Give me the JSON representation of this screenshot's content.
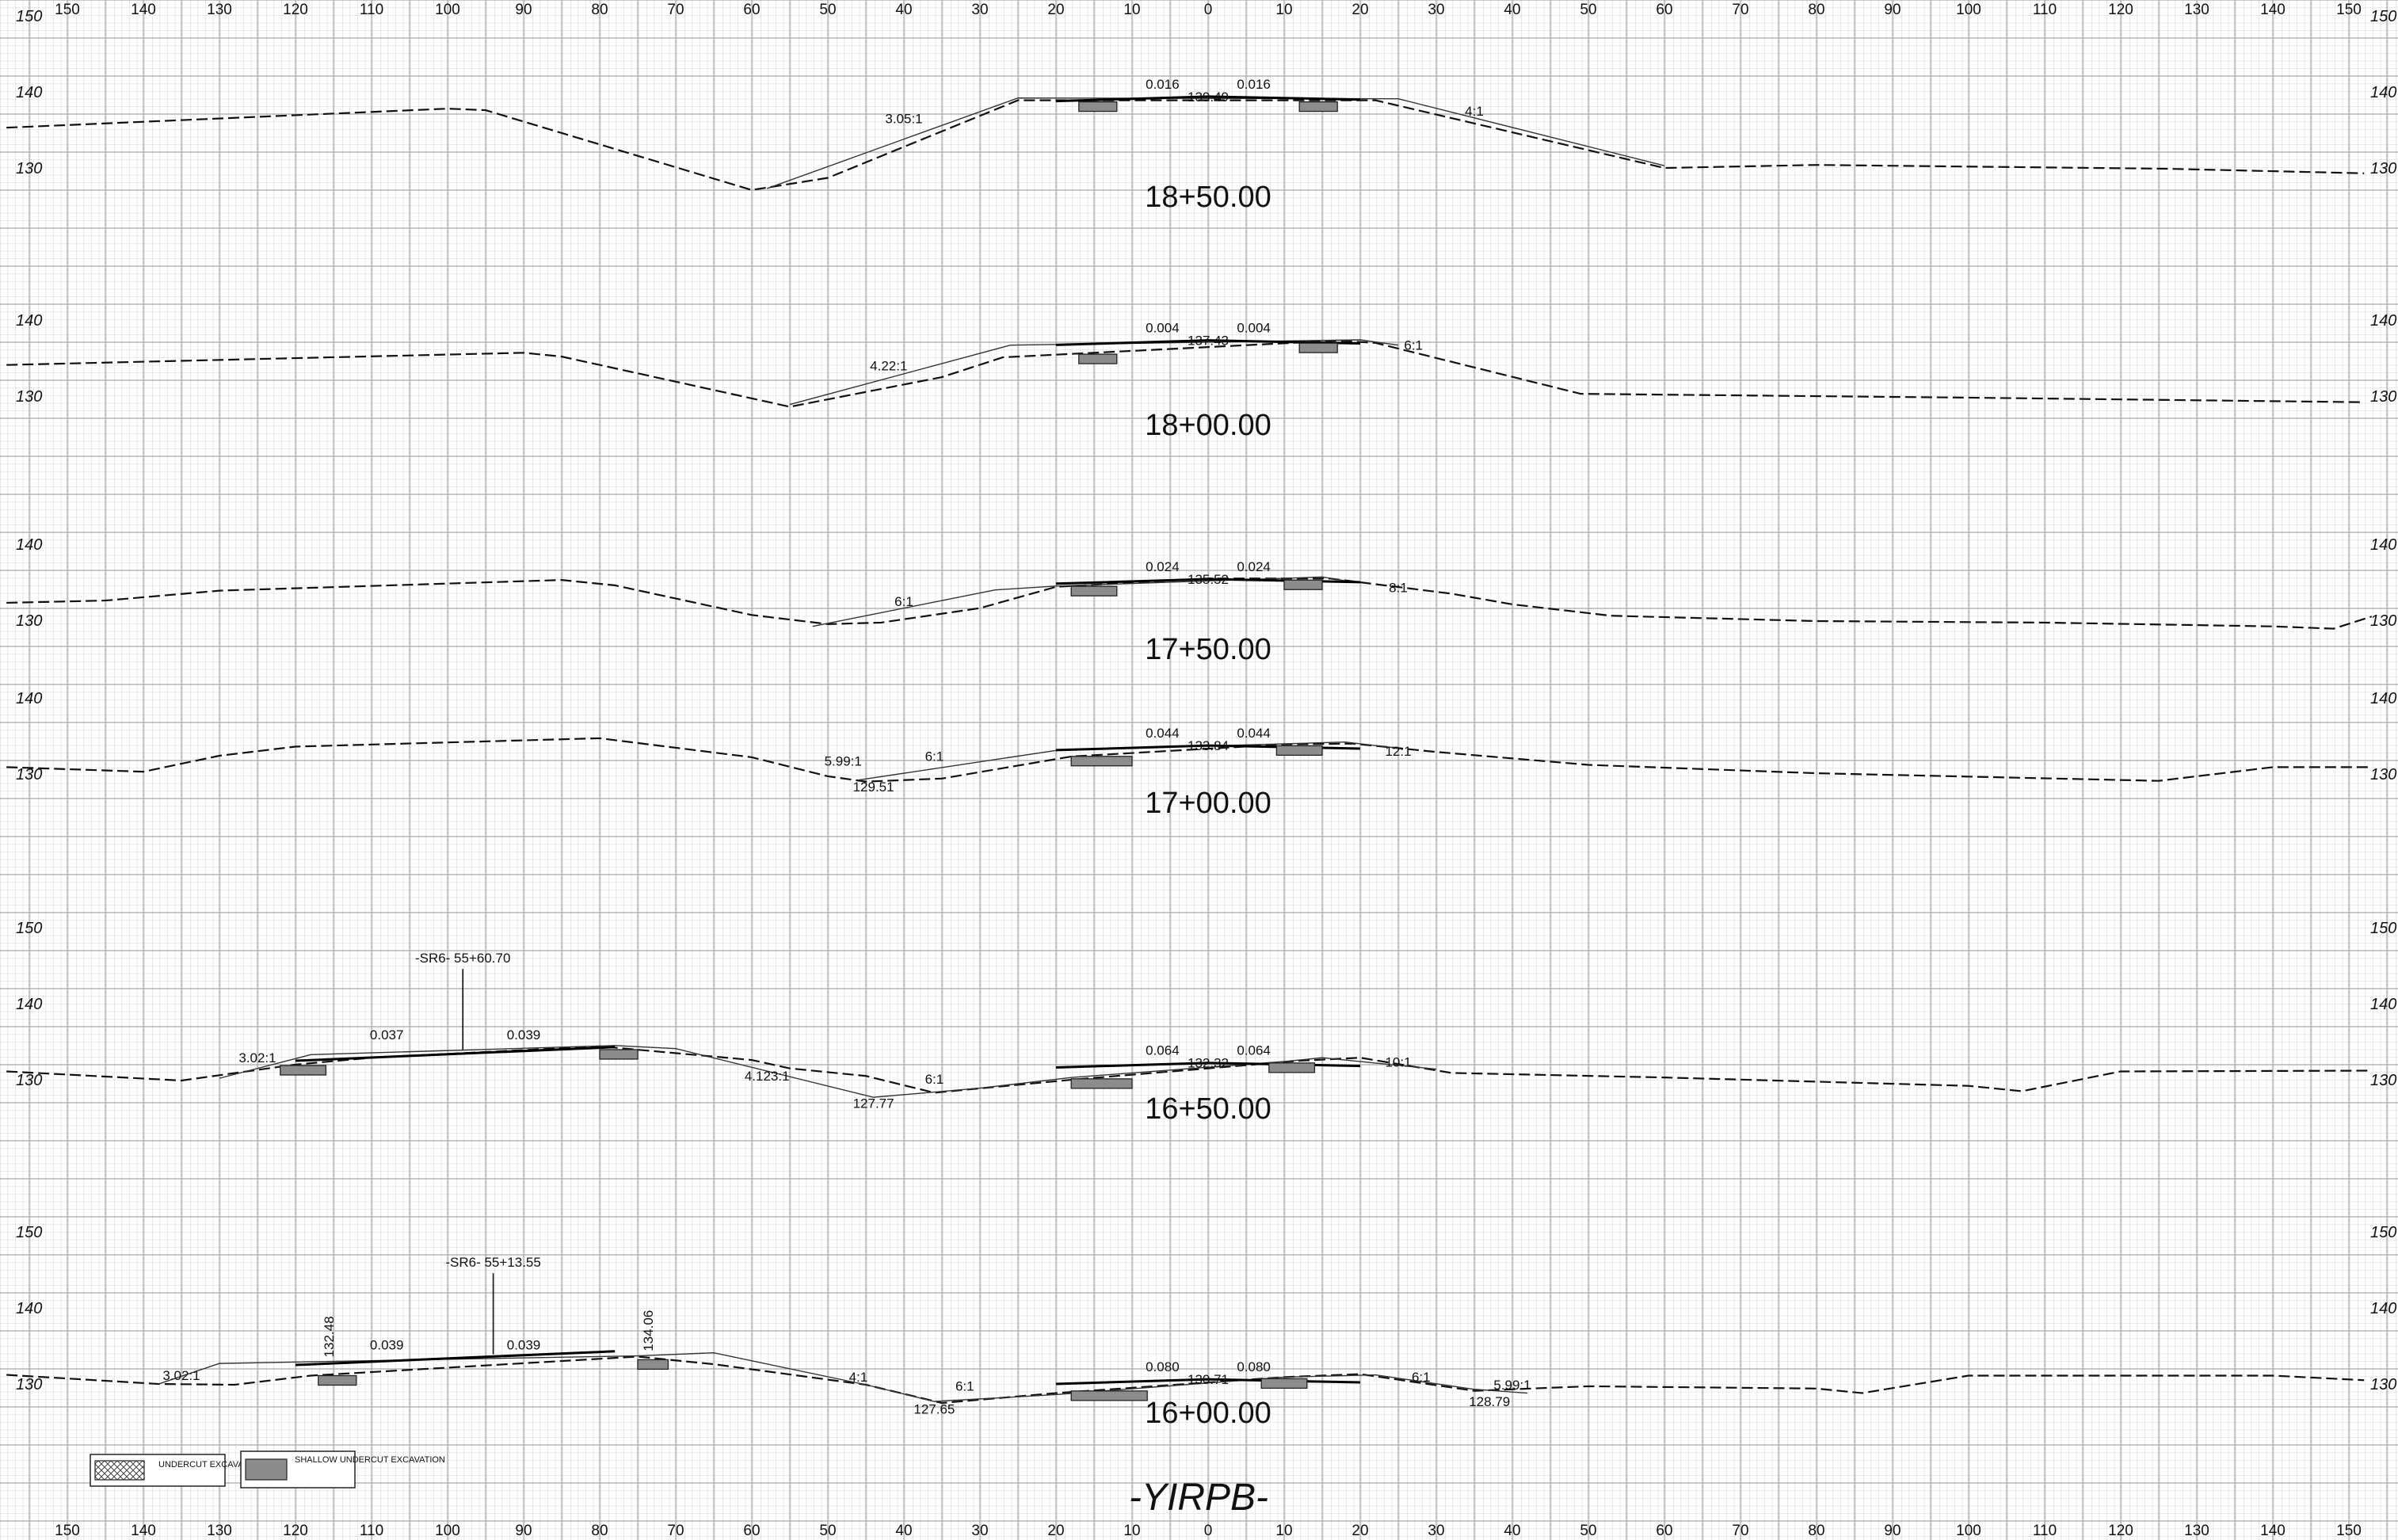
{
  "sheet_title": "-YIRPB-",
  "x_ticks": [
    "150",
    "140",
    "130",
    "120",
    "110",
    "100",
    "90",
    "80",
    "70",
    "60",
    "50",
    "40",
    "30",
    "20",
    "10",
    "0",
    "10",
    "20",
    "30",
    "40",
    "50",
    "60",
    "70",
    "80",
    "90",
    "100",
    "110",
    "120",
    "130",
    "140",
    "150"
  ],
  "x_tick_values": [
    -150,
    -140,
    -130,
    -120,
    -110,
    -100,
    -90,
    -80,
    -70,
    -60,
    -50,
    -40,
    -30,
    -20,
    -10,
    0,
    10,
    20,
    30,
    40,
    50,
    60,
    70,
    80,
    90,
    100,
    110,
    120,
    130,
    140,
    150
  ],
  "legend": {
    "undercut": "UNDERCUT EXCAVATION",
    "shallow": "SHALLOW UNDERCUT EXCAVATION"
  },
  "sections": [
    {
      "station": "18+50.00",
      "elev_labels": [
        "150",
        "140",
        "130"
      ],
      "elev_values": [
        150,
        140,
        130
      ],
      "centerline_elev": "139.49",
      "cross_slopes": [
        "0.016",
        "0.016"
      ],
      "slope_labels": [
        "3.05:1",
        "4:1"
      ],
      "ground": [
        [
          -158,
          135.4
        ],
        [
          -100,
          137.9
        ],
        [
          -95,
          137.7
        ],
        [
          -60,
          127.2
        ],
        [
          -50,
          128.8
        ],
        [
          -25,
          139.0
        ],
        [
          22,
          139.0
        ],
        [
          60,
          130.1
        ],
        [
          80,
          130.5
        ],
        [
          126,
          130.0
        ],
        [
          152,
          129.4
        ]
      ],
      "design": [
        [
          -58,
          127.4
        ],
        [
          -25,
          139.3
        ],
        [
          25,
          139.2
        ],
        [
          60,
          130.4
        ]
      ],
      "pads": [
        [
          -17,
          -12
        ],
        [
          12,
          17
        ]
      ]
    },
    {
      "station": "18+00.00",
      "elev_labels": [
        "140",
        "130"
      ],
      "elev_values": [
        140,
        130
      ],
      "centerline_elev": "137.43",
      "cross_slopes": [
        "0.004",
        "0.004"
      ],
      "slope_labels": [
        "4.22:1",
        "6:1"
      ],
      "ground": [
        [
          -158,
          134.2
        ],
        [
          -90,
          135.8
        ],
        [
          -85,
          135.3
        ],
        [
          -55,
          128.7
        ],
        [
          -35,
          132.6
        ],
        [
          -27,
          135.2
        ],
        [
          17,
          137.4
        ],
        [
          22,
          137.1
        ],
        [
          49,
          130.4
        ],
        [
          100,
          129.9
        ],
        [
          152,
          129.3
        ]
      ],
      "design": [
        [
          -55,
          129.0
        ],
        [
          -26,
          136.8
        ],
        [
          20,
          137.5
        ],
        [
          25,
          136.8
        ]
      ],
      "pads": [
        [
          -17,
          -12
        ],
        [
          12,
          17
        ]
      ]
    },
    {
      "station": "17+50.00",
      "elev_labels": [
        "140",
        "130"
      ],
      "elev_values": [
        140,
        130
      ],
      "centerline_elev": "135.52",
      "cross_slopes": [
        "0.024",
        "0.024"
      ],
      "slope_labels": [
        "6:1",
        "8:1"
      ],
      "ground": [
        [
          -158,
          132.4
        ],
        [
          -145,
          132.7
        ],
        [
          -130,
          134.0
        ],
        [
          -85,
          135.4
        ],
        [
          -78,
          134.7
        ],
        [
          -60,
          130.8
        ],
        [
          -50,
          129.6
        ],
        [
          -43,
          129.8
        ],
        [
          -30,
          131.7
        ],
        [
          -20,
          134.5
        ],
        [
          0,
          135.6
        ],
        [
          16,
          135.6
        ],
        [
          32,
          133.6
        ],
        [
          40,
          132.2
        ],
        [
          53,
          130.7
        ],
        [
          80,
          130.0
        ],
        [
          110,
          129.8
        ],
        [
          140,
          129.3
        ],
        [
          148,
          129.0
        ],
        [
          153,
          130.6
        ]
      ],
      "design": [
        [
          -52,
          129.3
        ],
        [
          -28,
          134.1
        ],
        [
          -20,
          134.6
        ],
        [
          15,
          135.8
        ],
        [
          18,
          135.3
        ]
      ],
      "pads": [
        [
          -18,
          -12
        ],
        [
          10,
          15
        ]
      ]
    },
    {
      "station": "17+00.00",
      "elev_labels": [
        "140",
        "130"
      ],
      "elev_values": [
        140,
        130
      ],
      "centerline_elev": "133.84",
      "cross_slopes": [
        "0.044",
        "0.044"
      ],
      "slope_labels": [
        "5.99:1",
        "6:1",
        "12:1"
      ],
      "low_point": "129.51",
      "ground": [
        [
          -158,
          131.0
        ],
        [
          -140,
          130.4
        ],
        [
          -130,
          132.5
        ],
        [
          -120,
          133.7
        ],
        [
          -80,
          134.8
        ],
        [
          -60,
          132.3
        ],
        [
          -50,
          129.8
        ],
        [
          -45,
          129.1
        ],
        [
          -35,
          129.5
        ],
        [
          -18,
          132.4
        ],
        [
          10,
          134.0
        ],
        [
          19,
          134.1
        ],
        [
          30,
          133.0
        ],
        [
          50,
          131.3
        ],
        [
          80,
          130.2
        ],
        [
          125,
          129.2
        ],
        [
          140,
          131.0
        ],
        [
          153,
          131.0
        ]
      ],
      "design": [
        [
          -46,
          129.3
        ],
        [
          -20,
          133.2
        ],
        [
          18,
          134.3
        ],
        [
          25,
          133.5
        ]
      ],
      "pads": [
        [
          -18,
          -10
        ],
        [
          9,
          15
        ]
      ]
    },
    {
      "station": "16+50.00",
      "elev_labels": [
        "150",
        "140",
        "130"
      ],
      "elev_values": [
        150,
        140,
        130
      ],
      "centerline_elev": "132.32",
      "cross_slopes": [
        "0.064",
        "0.064"
      ],
      "slope_labels": [
        "3.02:1",
        "4.123:1",
        "6:1",
        "10:1"
      ],
      "low_point": "127.77",
      "alignment": "-SR6- 55+60.70",
      "alignment_offset": -98,
      "approach_slopes": [
        "0.037",
        "0.039"
      ],
      "ground": [
        [
          -158,
          131.2
        ],
        [
          -135,
          130.0
        ],
        [
          -120,
          132.1
        ],
        [
          -110,
          133.0
        ],
        [
          -80,
          134.5
        ],
        [
          -60,
          132.7
        ],
        [
          -55,
          131.6
        ],
        [
          -45,
          130.6
        ],
        [
          -36,
          128.4
        ],
        [
          -18,
          130.1
        ],
        [
          12,
          132.6
        ],
        [
          20,
          133.0
        ],
        [
          32,
          131.0
        ],
        [
          60,
          130.4
        ],
        [
          100,
          129.3
        ],
        [
          107,
          128.6
        ],
        [
          120,
          131.2
        ],
        [
          153,
          131.3
        ]
      ],
      "design": [
        [
          -130,
          130.3
        ],
        [
          -118,
          133.4
        ],
        [
          -78,
          134.6
        ],
        [
          -70,
          134.2
        ],
        [
          -44,
          127.8
        ],
        [
          -30,
          129.0
        ],
        [
          -18,
          130.4
        ],
        [
          10,
          132.5
        ],
        [
          15,
          133.0
        ],
        [
          22,
          132.3
        ],
        [
          30,
          131.5
        ]
      ],
      "pads": [
        [
          -122,
          -116
        ],
        [
          -80,
          -75
        ],
        [
          -18,
          -10
        ],
        [
          8,
          14
        ]
      ],
      "alignment_label_y": 145.5
    },
    {
      "station": "16+00.00",
      "elev_labels": [
        "150",
        "140",
        "130"
      ],
      "elev_values": [
        150,
        140,
        130
      ],
      "centerline_elev": "130.71",
      "cross_slopes": [
        "0.080",
        "0.080"
      ],
      "slope_labels": [
        "3.02:1",
        "4:1",
        "6:1",
        "6:1",
        "5.99:1"
      ],
      "low_points": [
        "127.65",
        "128.79"
      ],
      "alignment": "-SR6- 55+13.55",
      "alignment_offset": -94,
      "approach_slopes": [
        "0.039",
        "0.039"
      ],
      "edge_elevs": [
        "132.48",
        "134.06"
      ],
      "ground": [
        [
          -158,
          131.3
        ],
        [
          -138,
          130.1
        ],
        [
          -128,
          130.0
        ],
        [
          -118,
          131.2
        ],
        [
          -75,
          133.7
        ],
        [
          -65,
          132.7
        ],
        [
          -45,
          130.0
        ],
        [
          -35,
          127.6
        ],
        [
          -20,
          128.9
        ],
        [
          10,
          131.0
        ],
        [
          20,
          131.4
        ],
        [
          35,
          129.2
        ],
        [
          50,
          129.8
        ],
        [
          80,
          129.5
        ],
        [
          86,
          128.9
        ],
        [
          100,
          131.2
        ],
        [
          140,
          131.2
        ],
        [
          152,
          130.6
        ]
      ],
      "design": [
        [
          -138,
          130.1
        ],
        [
          -130,
          132.8
        ],
        [
          -75,
          133.8
        ],
        [
          -65,
          134.2
        ],
        [
          -45,
          130.0
        ],
        [
          -36,
          127.8
        ],
        [
          -20,
          128.7
        ],
        [
          10,
          131.0
        ],
        [
          22,
          131.3
        ],
        [
          35,
          129.4
        ],
        [
          42,
          128.9
        ]
      ],
      "pads": [
        [
          -117,
          -112
        ],
        [
          -75,
          -71
        ],
        [
          -18,
          -8
        ],
        [
          7,
          13
        ]
      ],
      "alignment_label_y": 145.5
    }
  ]
}
